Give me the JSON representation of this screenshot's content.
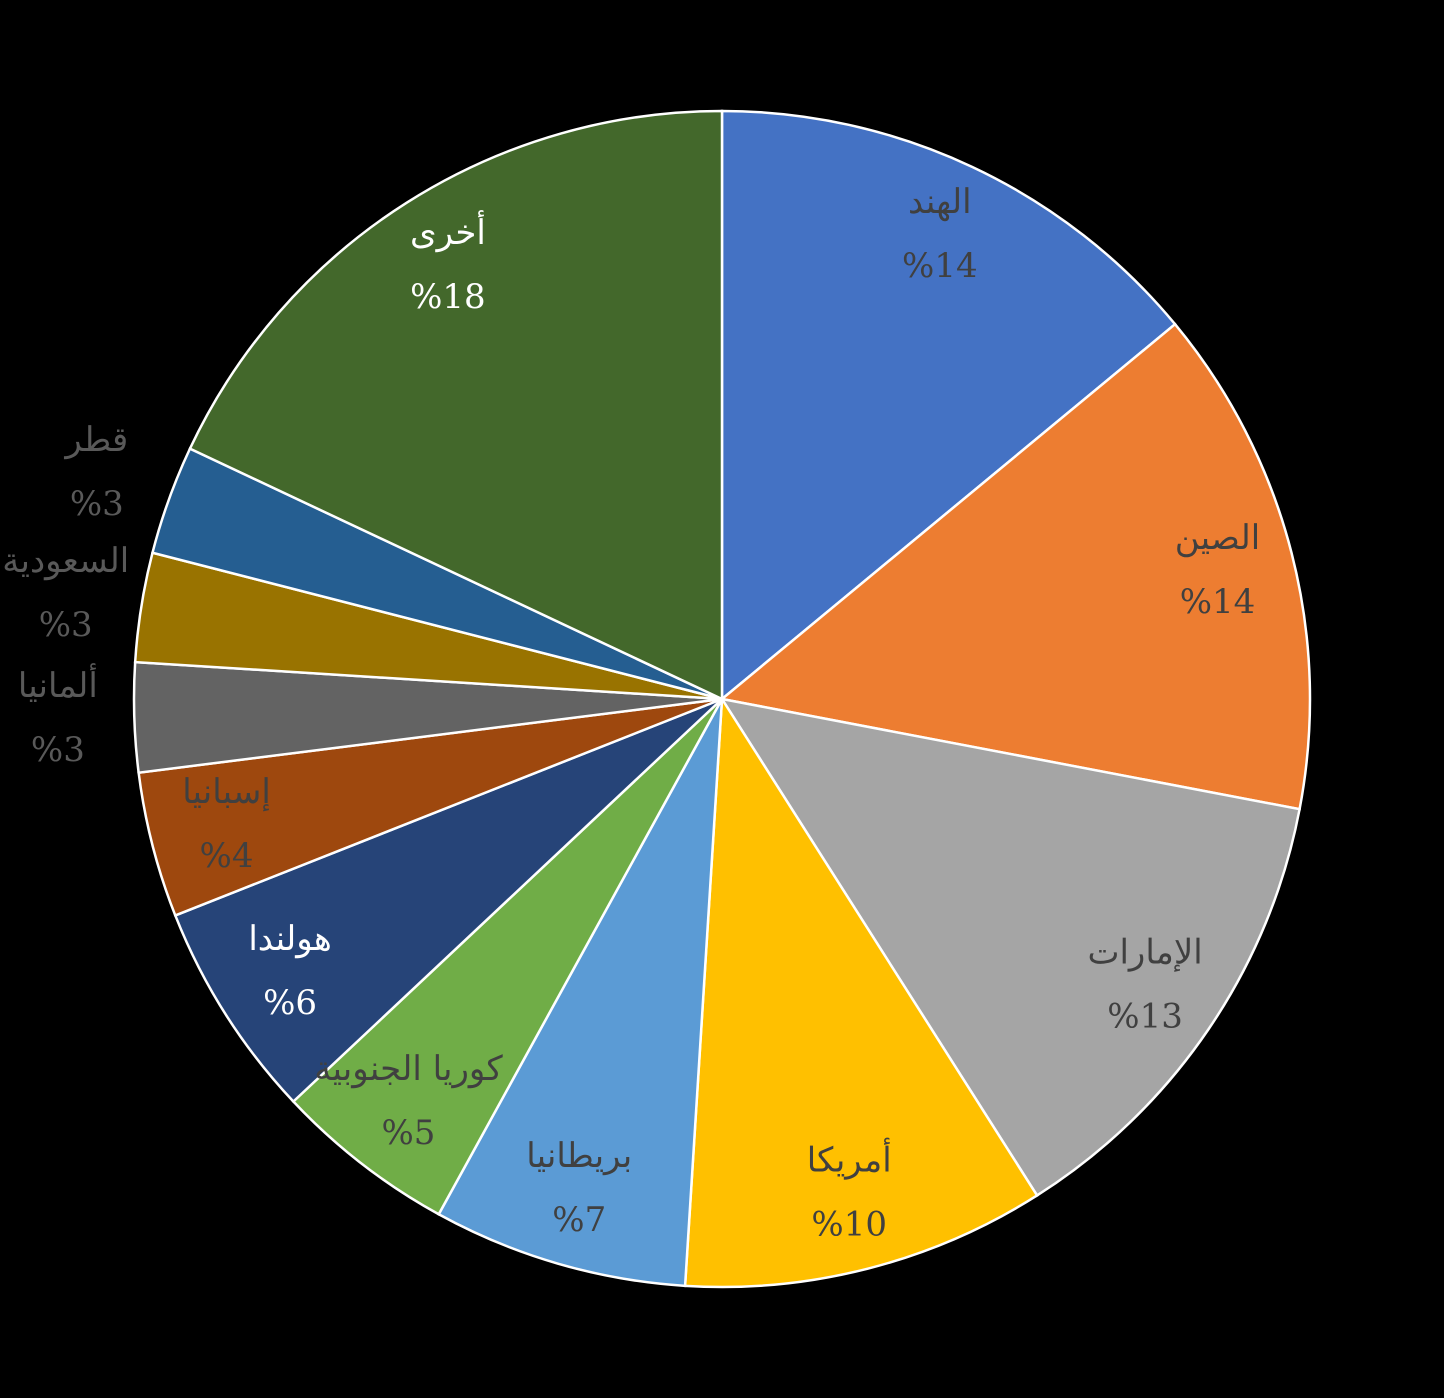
{
  "chart_data": {
    "type": "pie",
    "categories": [
      "الهند",
      "الصين",
      "الإمارات",
      "أمريكا",
      "بريطانيا",
      "كوريا الجنوبية",
      "هولندا",
      "إسبانيا",
      "ألمانيا",
      "السعودية",
      "قطر",
      "أخرى"
    ],
    "values": [
      14,
      14,
      13,
      10,
      7,
      5,
      6,
      4,
      3,
      3,
      3,
      18
    ],
    "value_labels": [
      "%14",
      "%14",
      "%13",
      "%10",
      "%7",
      "%5",
      "%6",
      "%4",
      "%3",
      "%3",
      "%3",
      "%18"
    ],
    "colors": [
      "#4472c4",
      "#ed7d31",
      "#a5a5a5",
      "#ffc000",
      "#5b9bd5",
      "#70ad47",
      "#264478",
      "#9e480e",
      "#636363",
      "#997300",
      "#255e91",
      "#43682b"
    ]
  }
}
